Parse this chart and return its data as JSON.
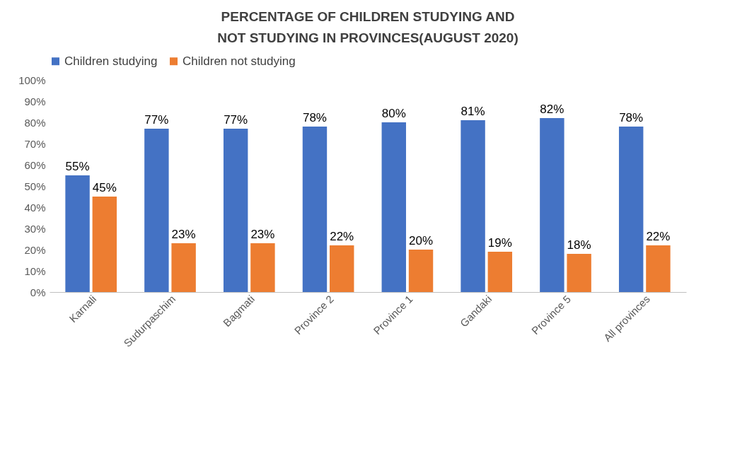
{
  "chart_data": {
    "type": "bar",
    "title": "PERCENTAGE OF CHILDREN STUDYING AND NOT STUDYING IN PROVINCES(AUGUST  2020)",
    "categories": [
      "Karnali",
      "Sudurpaschim",
      "Bagmati",
      "Province 2",
      "Province 1",
      "Gandaki",
      "Province 5",
      "All provinces"
    ],
    "series": [
      {
        "name": "Children studying",
        "color": "#4472c4",
        "values": [
          55,
          77,
          77,
          78,
          80,
          81,
          82,
          78
        ],
        "value_labels": [
          "55%",
          "77%",
          "77%",
          "78%",
          "80%",
          "81%",
          "82%",
          "78%"
        ]
      },
      {
        "name": "Children not studying",
        "color": "#ed7d31",
        "values": [
          45,
          23,
          23,
          22,
          20,
          19,
          18,
          22
        ],
        "value_labels": [
          "45%",
          "23%",
          "23%",
          "22%",
          "20%",
          "19%",
          "18%",
          "22%"
        ]
      }
    ],
    "ylim": [
      0,
      100
    ],
    "yticks": [
      {
        "value": 0,
        "label": "0%"
      },
      {
        "value": 10,
        "label": "10%"
      },
      {
        "value": 20,
        "label": "20%"
      },
      {
        "value": 30,
        "label": "30%"
      },
      {
        "value": 40,
        "label": "40%"
      },
      {
        "value": 50,
        "label": "50%"
      },
      {
        "value": 60,
        "label": "60%"
      },
      {
        "value": 70,
        "label": "70%"
      },
      {
        "value": 80,
        "label": "80%"
      },
      {
        "value": 90,
        "label": "90%"
      },
      {
        "value": 100,
        "label": "100%"
      }
    ],
    "grid": false,
    "legend": "top"
  }
}
